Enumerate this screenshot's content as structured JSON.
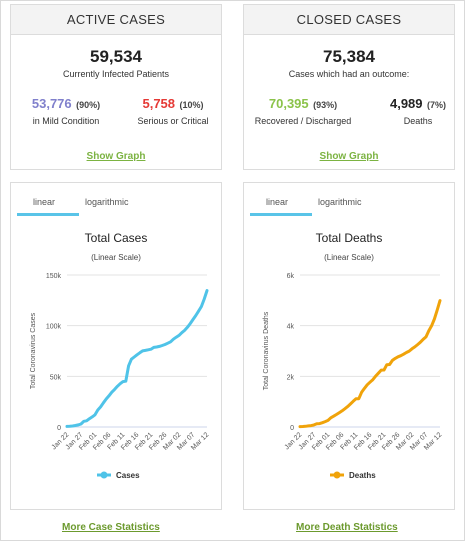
{
  "active": {
    "header": "ACTIVE CASES",
    "total": "59,534",
    "total_label": "Currently Infected Patients",
    "mild_num": "53,776",
    "mild_pct": "(90%)",
    "mild_label": "in Mild Condition",
    "serious_num": "5,758",
    "serious_pct": "(10%)",
    "serious_label": "Serious or Critical",
    "show_graph": "Show Graph",
    "colors": {
      "mild": "#8080cc",
      "serious": "#e53935"
    }
  },
  "closed": {
    "header": "CLOSED CASES",
    "total": "75,384",
    "total_label": "Cases which had an outcome:",
    "recovered_num": "70,395",
    "recovered_pct": "(93%)",
    "recovered_label": "Recovered / Discharged",
    "deaths_num": "4,989",
    "deaths_pct": "(7%)",
    "deaths_label": "Deaths",
    "show_graph": "Show Graph",
    "colors": {
      "recovered": "#8bc34a",
      "deaths": "#222222"
    }
  },
  "tabs": {
    "linear": "linear",
    "logarithmic": "logarithmic"
  },
  "links": {
    "more_cases": "More Case Statistics",
    "more_deaths": "More Death Statistics"
  },
  "chart_data": [
    {
      "type": "line",
      "title": "Total Cases",
      "subtitle": "(Linear Scale)",
      "ylabel": "Total Coronavirus Cases",
      "xlabel": "",
      "x_ticks": [
        "Jan 22",
        "Jan 27",
        "Feb 01",
        "Feb 06",
        "Feb 11",
        "Feb 16",
        "Feb 21",
        "Feb 26",
        "Mar 02",
        "Mar 07",
        "Mar 12"
      ],
      "y_ticks": [
        "0",
        "50k",
        "100k",
        "150k"
      ],
      "ylim": [
        0,
        150000
      ],
      "color": "#4fc3e8",
      "series": [
        {
          "name": "Cases",
          "x_days": [
            0,
            1,
            2,
            3,
            4,
            5,
            6,
            7,
            8,
            9,
            10,
            11,
            12,
            13,
            14,
            15,
            16,
            17,
            18,
            19,
            20,
            21,
            22,
            23,
            24,
            25,
            26,
            27,
            28,
            29,
            30,
            31,
            32,
            33,
            34,
            35,
            36,
            37,
            38,
            39,
            40,
            41,
            42,
            43,
            44,
            45,
            46,
            47,
            48,
            49,
            50
          ],
          "values": [
            555,
            653,
            941,
            1434,
            2118,
            2927,
            5578,
            6166,
            8234,
            9927,
            12038,
            16787,
            19881,
            23892,
            27635,
            30794,
            34391,
            37120,
            40150,
            42762,
            44802,
            45221,
            60368,
            66885,
            69030,
            71224,
            73258,
            75136,
            75639,
            76197,
            76819,
            78572,
            78958,
            79561,
            80406,
            81388,
            82746,
            84112,
            86604,
            88585,
            90443,
            93016,
            95314,
            98425,
            102050,
            106099,
            109991,
            114381,
            118948,
            126214,
            134576
          ]
        }
      ]
    },
    {
      "type": "line",
      "title": "Total Deaths",
      "subtitle": "(Linear Scale)",
      "ylabel": "Total Coronavirus Deaths",
      "xlabel": "",
      "x_ticks": [
        "Jan 22",
        "Jan 27",
        "Feb 01",
        "Feb 06",
        "Feb 11",
        "Feb 16",
        "Feb 21",
        "Feb 26",
        "Mar 02",
        "Mar 07",
        "Mar 12"
      ],
      "y_ticks": [
        "0",
        "2k",
        "4k",
        "6k"
      ],
      "ylim": [
        0,
        6000
      ],
      "color": "#f0a30a",
      "series": [
        {
          "name": "Deaths",
          "x_days": [
            0,
            1,
            2,
            3,
            4,
            5,
            6,
            7,
            8,
            9,
            10,
            11,
            12,
            13,
            14,
            15,
            16,
            17,
            18,
            19,
            20,
            21,
            22,
            23,
            24,
            25,
            26,
            27,
            28,
            29,
            30,
            31,
            32,
            33,
            34,
            35,
            36,
            37,
            38,
            39,
            40,
            41,
            42,
            43,
            44,
            45,
            46,
            47,
            48,
            49,
            50
          ],
          "values": [
            17,
            18,
            26,
            42,
            56,
            82,
            131,
            133,
            171,
            213,
            259,
            362,
            426,
            492,
            564,
            634,
            719,
            806,
            906,
            1013,
            1113,
            1118,
            1371,
            1523,
            1666,
            1770,
            1868,
            2007,
            2122,
            2247,
            2251,
            2458,
            2469,
            2629,
            2708,
            2770,
            2814,
            2872,
            2941,
            2996,
            3085,
            3160,
            3254,
            3348,
            3460,
            3558,
            3803,
            3996,
            4262,
            4615,
            4989
          ]
        }
      ]
    }
  ]
}
